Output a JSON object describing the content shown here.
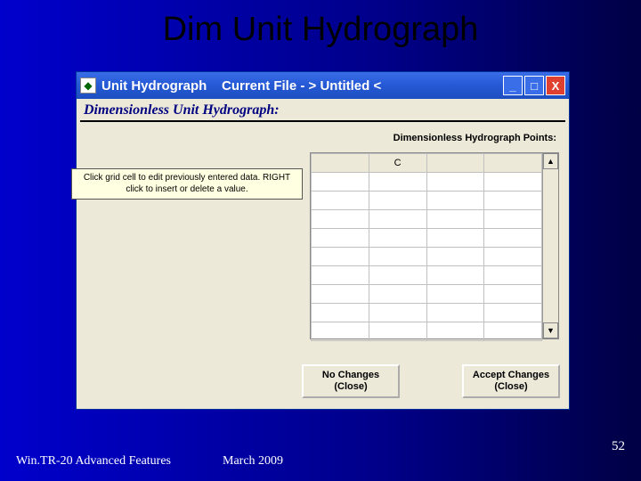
{
  "slide": {
    "title": "Dim Unit Hydrograph",
    "footer_left": "Win.TR-20 Advanced Features",
    "footer_mid": "March 2009",
    "page_number": "52"
  },
  "window": {
    "titlebar": {
      "app_name": "Unit Hydrograph",
      "file_label": "Current File - > Untitled <",
      "icon_glyph": "◆"
    },
    "controls": {
      "min_glyph": "_",
      "max_glyph": "□",
      "close_glyph": "X"
    },
    "subtitle": "Dimensionless Unit Hydrograph:",
    "help_text": "Click grid cell to edit previously entered data. RIGHT click to insert or delete  a value.",
    "points_label": "Dimensionless Hydrograph Points:",
    "grid": {
      "columns": [
        "",
        "C",
        "",
        ""
      ],
      "active_cell": {
        "row": 0,
        "col": 2
      },
      "row_count": 9,
      "colors": {
        "active_bg": "#00d000",
        "header_bg": "#ece9d8",
        "grid_line": "#c0c0c0",
        "cell_bg": "#ffffff"
      }
    },
    "scroll": {
      "up_glyph": "▲",
      "down_glyph": "▼"
    },
    "buttons": {
      "no_changes_l1": "No Changes",
      "no_changes_l2": "(Close)",
      "accept_l1": "Accept Changes",
      "accept_l2": "(Close)"
    }
  },
  "colors": {
    "slide_bg_from": "#0000cc",
    "slide_bg_to": "#000044",
    "titlebar_from": "#3a6ee8",
    "titlebar_to": "#1d4ec0",
    "client_bg": "#ece9d8",
    "help_bg": "#ffffe1",
    "close_btn": "#e04030",
    "subtitle_color": "#000080"
  }
}
